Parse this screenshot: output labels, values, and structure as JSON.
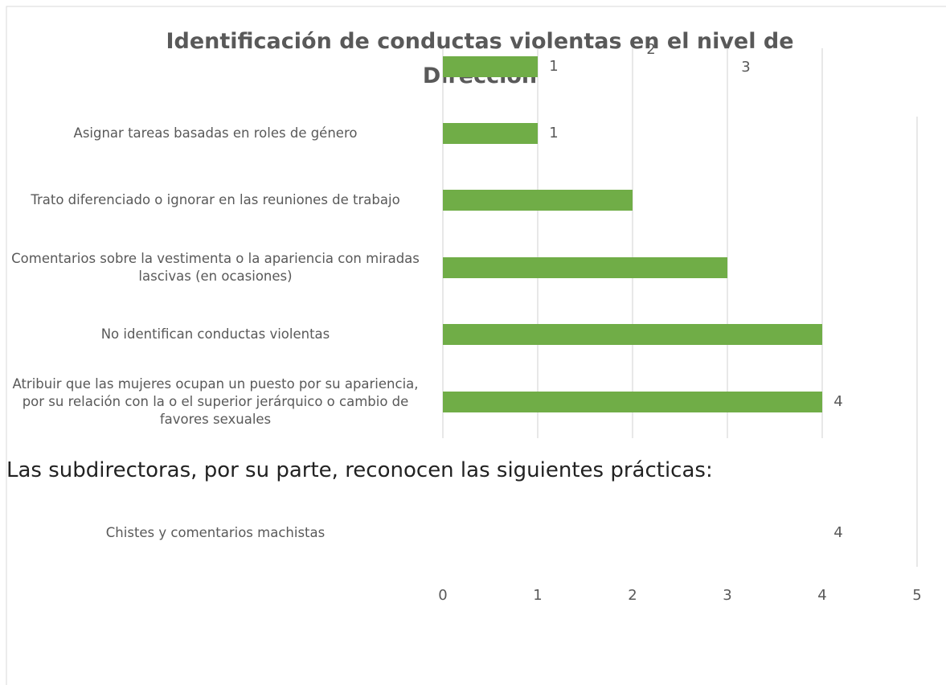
{
  "chart_data": {
    "type": "bar",
    "orientation": "horizontal",
    "title": "Identificación de conductas violentas en el nivel de Dirección",
    "categories": [
      null,
      "Asignar tareas basadas en roles de género",
      "Trato diferenciado o ignorar en las reuniones de trabajo",
      "Comentarios sobre la vestimenta o la apariencia con miradas lascivas (en ocasiones)",
      "No identifican conductas violentas",
      "Atribuir que las mujeres ocupan un puesto por su apariencia, por su relación con la o el superior jerárquico o cambio de favores sexuales",
      "Chistes y comentarios machistas"
    ],
    "values": [
      1,
      1,
      2,
      3,
      4,
      4,
      4
    ],
    "value_labels": [
      "1",
      "1",
      null,
      null,
      null,
      "4",
      "4"
    ],
    "color": "#70ad47",
    "xlim": [
      0,
      5
    ],
    "xticks": [
      0,
      1,
      2,
      3,
      4,
      5
    ],
    "grid": true,
    "annotations": [
      "2",
      "3"
    ]
  },
  "body_text": "Las subdirectoras, por su parte, reconocen las siguientes prácticas:"
}
